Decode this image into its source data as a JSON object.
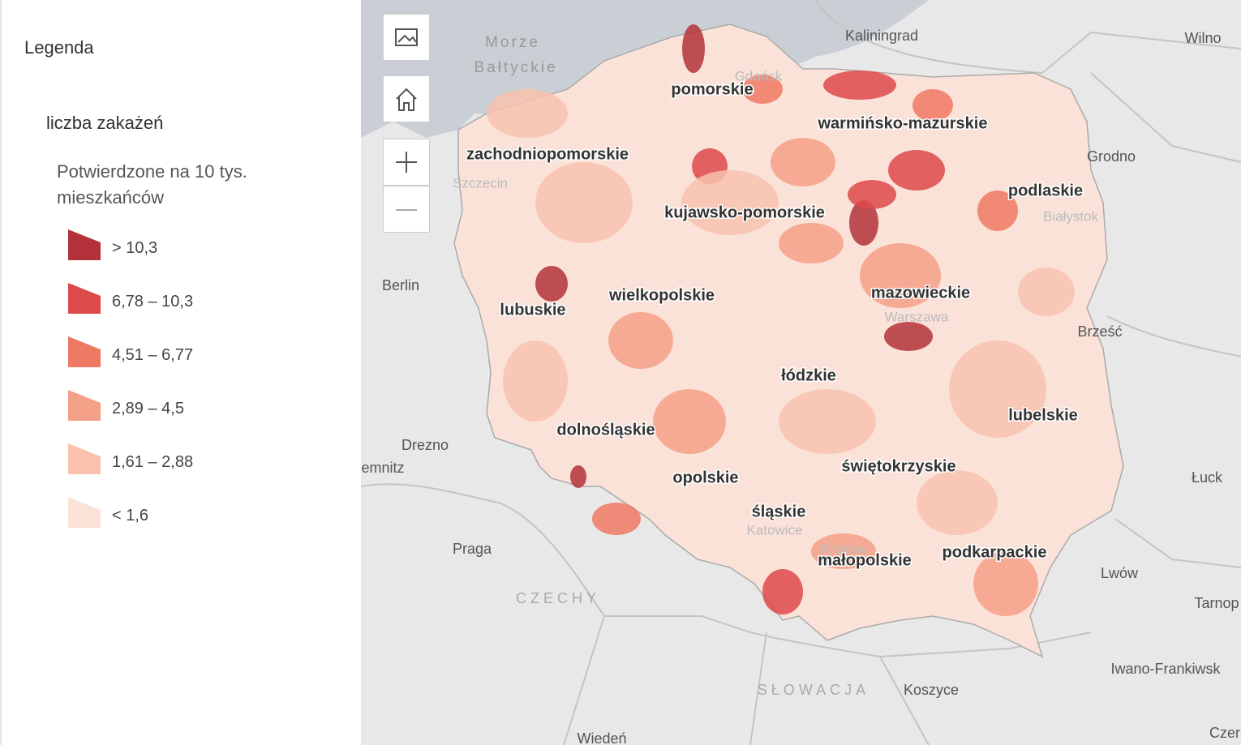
{
  "legend": {
    "title": "Legenda",
    "layer": "liczba zakażeń",
    "field": [
      "Potwierdzone na 10 tys.",
      "mieszkańców"
    ],
    "classes": [
      {
        "label": "> 10,3",
        "color": "#b3323a"
      },
      {
        "label": "6,78 – 10,3",
        "color": "#dd4a4a"
      },
      {
        "label": "4,51 – 6,77",
        "color": "#ee7963"
      },
      {
        "label": "2,89 – 4,5",
        "color": "#f4a086"
      },
      {
        "label": "1,61 – 2,88",
        "color": "#f8c2ae"
      },
      {
        "label": "< 1,6",
        "color": "#fbe2d9"
      }
    ]
  },
  "map": {
    "sea": [
      "Morze",
      "Bałtyckie"
    ],
    "regions": [
      "pomorskie",
      "warmińsko-mazurskie",
      "zachodniopomorskie",
      "podlaskie",
      "kujawsko-pomorskie",
      "mazowieckie",
      "wielkopolskie",
      "lubuskie",
      "łódzkie",
      "lubelskie",
      "dolnośląskie",
      "świętokrzyskie",
      "opolskie",
      "śląskie",
      "małopolskie",
      "podkarpackie"
    ],
    "places": [
      "Kaliningrad",
      "Wilno",
      "Grodno",
      "Berlin",
      "Brześć",
      "Drezno",
      "emnitz",
      "Łuck",
      "Praga",
      "Lwów",
      "Tarnop",
      "Iwano-Frankiwsk",
      "Koszyce",
      "Wiedeń",
      "Czer"
    ],
    "faint": [
      "Gdańsk",
      "Szczecin",
      "Białystok",
      "Warszawa",
      "Kraków",
      "Katowice"
    ],
    "countries": [
      "CZECHY",
      "SŁOWACJA"
    ]
  }
}
